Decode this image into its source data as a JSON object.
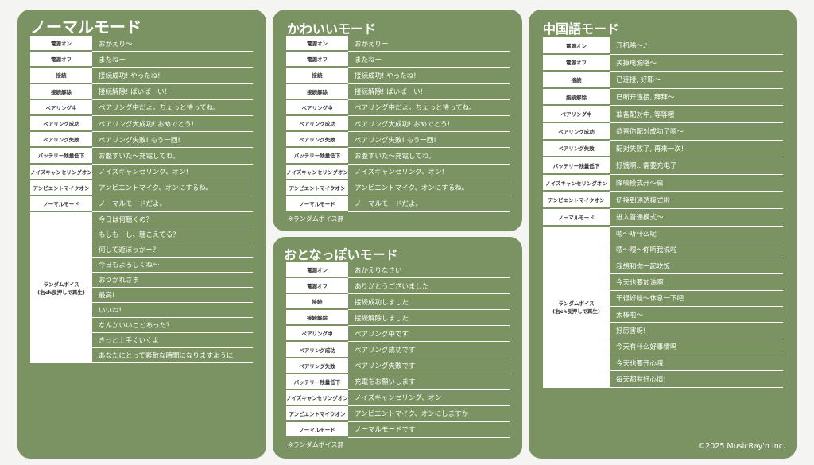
{
  "panels": [
    {
      "title": "ノーマルモード",
      "rows": [
        {
          "key": "電源オン",
          "value": "おかえり〜"
        },
        {
          "key": "電源オフ",
          "value": "またねー"
        },
        {
          "key": "接続",
          "value": "接続成功! やったね!"
        },
        {
          "key": "接続解除",
          "value": "接続解除! ばいばーい!"
        },
        {
          "key": "ペアリング中",
          "value": "ペアリング中だよ。ちょっと待ってね。"
        },
        {
          "key": "ペアリング成功",
          "value": "ペアリング大成功! おめでとう!"
        },
        {
          "key": "ペアリング失敗",
          "value": "ペアリング失敗! もう一回!"
        },
        {
          "key": "バッテリー残量低下",
          "value": "お腹すいた〜充電してね。"
        },
        {
          "key": "ノイズキャンセリングオン",
          "value": "ノイズキャンセリング、オン!"
        },
        {
          "key": "アンビエントマイクオン",
          "value": "アンビエントマイク、オンにするね。"
        },
        {
          "key": "ノーマルモード",
          "value": "ノーマルモードだよ。"
        }
      ],
      "random": {
        "label": [
          "ランダムボイス",
          "(右ch長押しで再生)"
        ],
        "items": [
          "今日は何聴くの？",
          "もしもーし、聴こえてる？",
          "何して遊ぼっかー？",
          "今日もよろしくね〜",
          "おつかれさま",
          "最高!",
          "いいね!",
          "なんかいいことあった？",
          "きっと上手くいくよ",
          "あなたにとって素敵な時間になりますように"
        ]
      }
    },
    {
      "title": "かわいいモード",
      "rows": [
        {
          "key": "電源オン",
          "value": "おかえりー"
        },
        {
          "key": "電源オフ",
          "value": "またねー"
        },
        {
          "key": "接続",
          "value": "接続成功! やったね!"
        },
        {
          "key": "接続解除",
          "value": "接続解除! ばいばーい!"
        },
        {
          "key": "ペアリング中",
          "value": "ペアリング中だよ。ちょっと待ってね。"
        },
        {
          "key": "ペアリング成功",
          "value": "ペアリング大成功! おめでとう!"
        },
        {
          "key": "ペアリング失敗",
          "value": "ペアリング失敗! もう一回!"
        },
        {
          "key": "バッテリー残量低下",
          "value": "お腹すいた〜充電してね。"
        },
        {
          "key": "ノイズキャンセリングオン",
          "value": "ノイズキャンセリング、オン!"
        },
        {
          "key": "アンビエントマイクオン",
          "value": "アンビエントマイク、オンにするね。"
        },
        {
          "key": "ノーマルモード",
          "value": "ノーマルモードだよ。"
        }
      ],
      "note": "※ランダムボイス無"
    },
    {
      "title": "おとなっぽいモード",
      "rows": [
        {
          "key": "電源オン",
          "value": "おかえりなさい"
        },
        {
          "key": "電源オフ",
          "value": "ありがとうございました"
        },
        {
          "key": "接続",
          "value": "接続成功しました"
        },
        {
          "key": "接続解除",
          "value": "接続解除しました"
        },
        {
          "key": "ペアリング中",
          "value": "ペアリング中です"
        },
        {
          "key": "ペアリング成功",
          "value": "ペアリング成功です"
        },
        {
          "key": "ペアリング失敗",
          "value": "ペアリング失敗です"
        },
        {
          "key": "バッテリー残量低下",
          "value": "充電をお願いします"
        },
        {
          "key": "ノイズキャンセリングオン",
          "value": "ノイズキャンセリング、オン"
        },
        {
          "key": "アンビエントマイクオン",
          "value": "アンビエントマイク、オンにしますか"
        },
        {
          "key": "ノーマルモード",
          "value": "ノーマルモードです"
        }
      ],
      "note": "※ランダムボイス無"
    },
    {
      "title": "中国語モード",
      "rows": [
        {
          "key": "電源オン",
          "value": "开机咯〜♪"
        },
        {
          "key": "電源オフ",
          "value": "关掉电源咯〜"
        },
        {
          "key": "接続",
          "value": "已连接, 好耶〜"
        },
        {
          "key": "接続解除",
          "value": "已断开连接, 拜拜〜"
        },
        {
          "key": "ペアリング中",
          "value": "准备配对中, 等等哦"
        },
        {
          "key": "ペアリング成功",
          "value": "恭喜你配对成功了嗯〜"
        },
        {
          "key": "ペアリング失敗",
          "value": "配对失败了, 再来一次!"
        },
        {
          "key": "バッテリー残量低下",
          "value": "好饿啊…需要充电了"
        },
        {
          "key": "ノイズキャンセリングオン",
          "value": "降噪模式开〜启"
        },
        {
          "key": "アンビエントマイクオン",
          "value": "切换到通透模式啦"
        },
        {
          "key": "ノーマルモード",
          "value": "进入普通模式〜"
        }
      ],
      "random": {
        "label": [
          "ランダムボイス",
          "(右ch長押しで再生)"
        ],
        "items": [
          "嗯〜听什么呢",
          "喂〜喂〜你听我说啦",
          "我想和你一起吃饭",
          "今天也要加油啊",
          "干得好哇〜休息一下吧",
          "太棒啦〜",
          "好厉害呀!",
          "今天有什么好事情吗",
          "今天也要开心哦",
          "每天都有好心情!"
        ]
      }
    }
  ],
  "footer": "©2025 MusicRay'n Inc."
}
